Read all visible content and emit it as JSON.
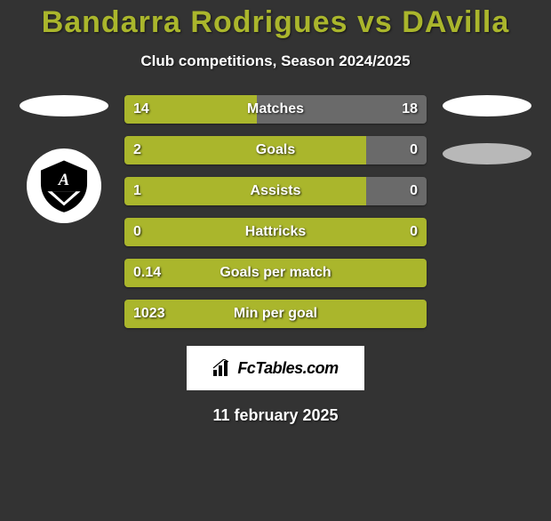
{
  "title": {
    "player1": "Bandarra Rodrigues",
    "vs": "vs",
    "player2": "DAvilla",
    "color": "#aab62c"
  },
  "subtitle": "Club competitions, Season 2024/2025",
  "colors": {
    "bar_left": "#aab62c",
    "bar_right": "#6a6a6a",
    "ellipse_left": "#ffffff",
    "ellipse_right_top": "#ffffff",
    "ellipse_right_bottom": "#b8b8b8",
    "background": "#333333"
  },
  "bars": [
    {
      "label": "Matches",
      "left_val": "14",
      "right_val": "18",
      "left_pct": 43.75,
      "right_pct": 56.25
    },
    {
      "label": "Goals",
      "left_val": "2",
      "right_val": "0",
      "left_pct": 80.0,
      "right_pct": 20.0
    },
    {
      "label": "Assists",
      "left_val": "1",
      "right_val": "0",
      "left_pct": 80.0,
      "right_pct": 20.0
    },
    {
      "label": "Hattricks",
      "left_val": "0",
      "right_val": "0",
      "left_pct": 100.0,
      "right_pct": 0.0
    },
    {
      "label": "Goals per match",
      "left_val": "0.14",
      "right_val": "",
      "left_pct": 100.0,
      "right_pct": 0.0
    },
    {
      "label": "Min per goal",
      "left_val": "1023",
      "right_val": "",
      "left_pct": 100.0,
      "right_pct": 0.0
    }
  ],
  "brand": "FcTables.com",
  "date": "11 february 2025"
}
